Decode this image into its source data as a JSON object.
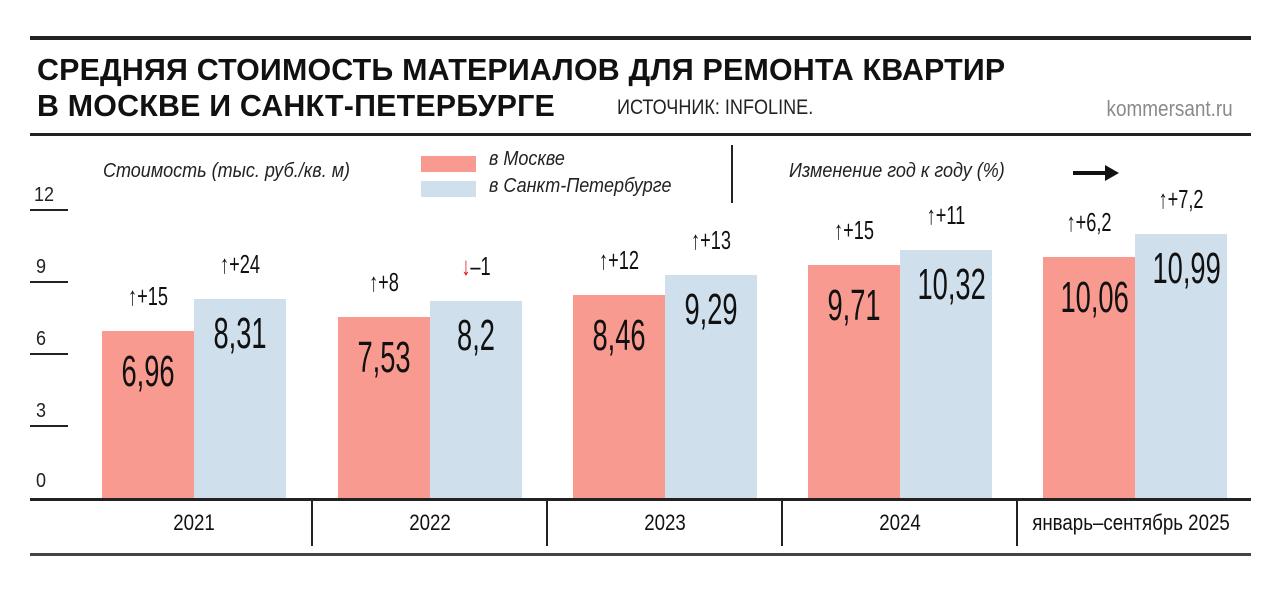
{
  "header": {
    "title_line1": "СРЕДНЯЯ СТОИМОСТЬ МАТЕРИАЛОВ ДЛЯ РЕМОНТА КВАРТИР",
    "title_line2": "В МОСКВЕ И САНКТ-ПЕТЕРБУРГЕ",
    "source": "ИСТОЧНИК: INFOLINE.",
    "brand": "kommersant.ru"
  },
  "labels": {
    "y_axis_label": "Стоимость (тыс. руб./кв. м)",
    "change_label": "Изменение год к году (%)",
    "change_arrow": "⟶"
  },
  "legend": [
    {
      "name": "в Москве",
      "color": "#F99A90"
    },
    {
      "name": "в Санкт-Петербурге",
      "color": "#CFDFEC"
    }
  ],
  "y_ticks": [
    "12",
    "9",
    "6",
    "3",
    "0"
  ],
  "chart_data": {
    "type": "bar",
    "title": "Средняя стоимость материалов для ремонта квартир в Москве и Санкт-Петербурге",
    "subtitle": "Источник: INFOLINE.",
    "xlabel": "",
    "ylabel": "Стоимость (тыс. руб./кв. м)",
    "ylim": [
      0,
      12
    ],
    "y_ticks": [
      0,
      3,
      6,
      9,
      12
    ],
    "grid": false,
    "legend_position": "top",
    "categories": [
      "2021",
      "2022",
      "2023",
      "2024",
      "январь–сентябрь 2025"
    ],
    "series": [
      {
        "name": "в Москве",
        "color": "#F99A90",
        "values": [
          6.96,
          7.53,
          8.46,
          9.71,
          10.06
        ],
        "labels": [
          "6,96",
          "7,53",
          "8,46",
          "9,71",
          "10,06"
        ],
        "yoy_change_pct": [
          15,
          8,
          12,
          15,
          6.2
        ],
        "yoy_labels": [
          "+15",
          "+8",
          "+12",
          "+15",
          "+6,2"
        ],
        "yoy_direction": [
          "up",
          "up",
          "up",
          "up",
          "up"
        ]
      },
      {
        "name": "в Санкт-Петербурге",
        "color": "#CFDFEC",
        "values": [
          8.31,
          8.2,
          9.29,
          10.32,
          10.99
        ],
        "labels": [
          "8,31",
          "8,2",
          "9,29",
          "10,32",
          "10,99"
        ],
        "yoy_change_pct": [
          24,
          -1,
          13,
          11,
          7.2
        ],
        "yoy_labels": [
          "+24",
          "–1",
          "+13",
          "+11",
          "+7,2"
        ],
        "yoy_direction": [
          "up",
          "down",
          "up",
          "up",
          "up"
        ]
      }
    ],
    "annotations": [
      "Изменение год к году (%)"
    ]
  },
  "arrows": {
    "up": "↑",
    "down": "↓"
  }
}
